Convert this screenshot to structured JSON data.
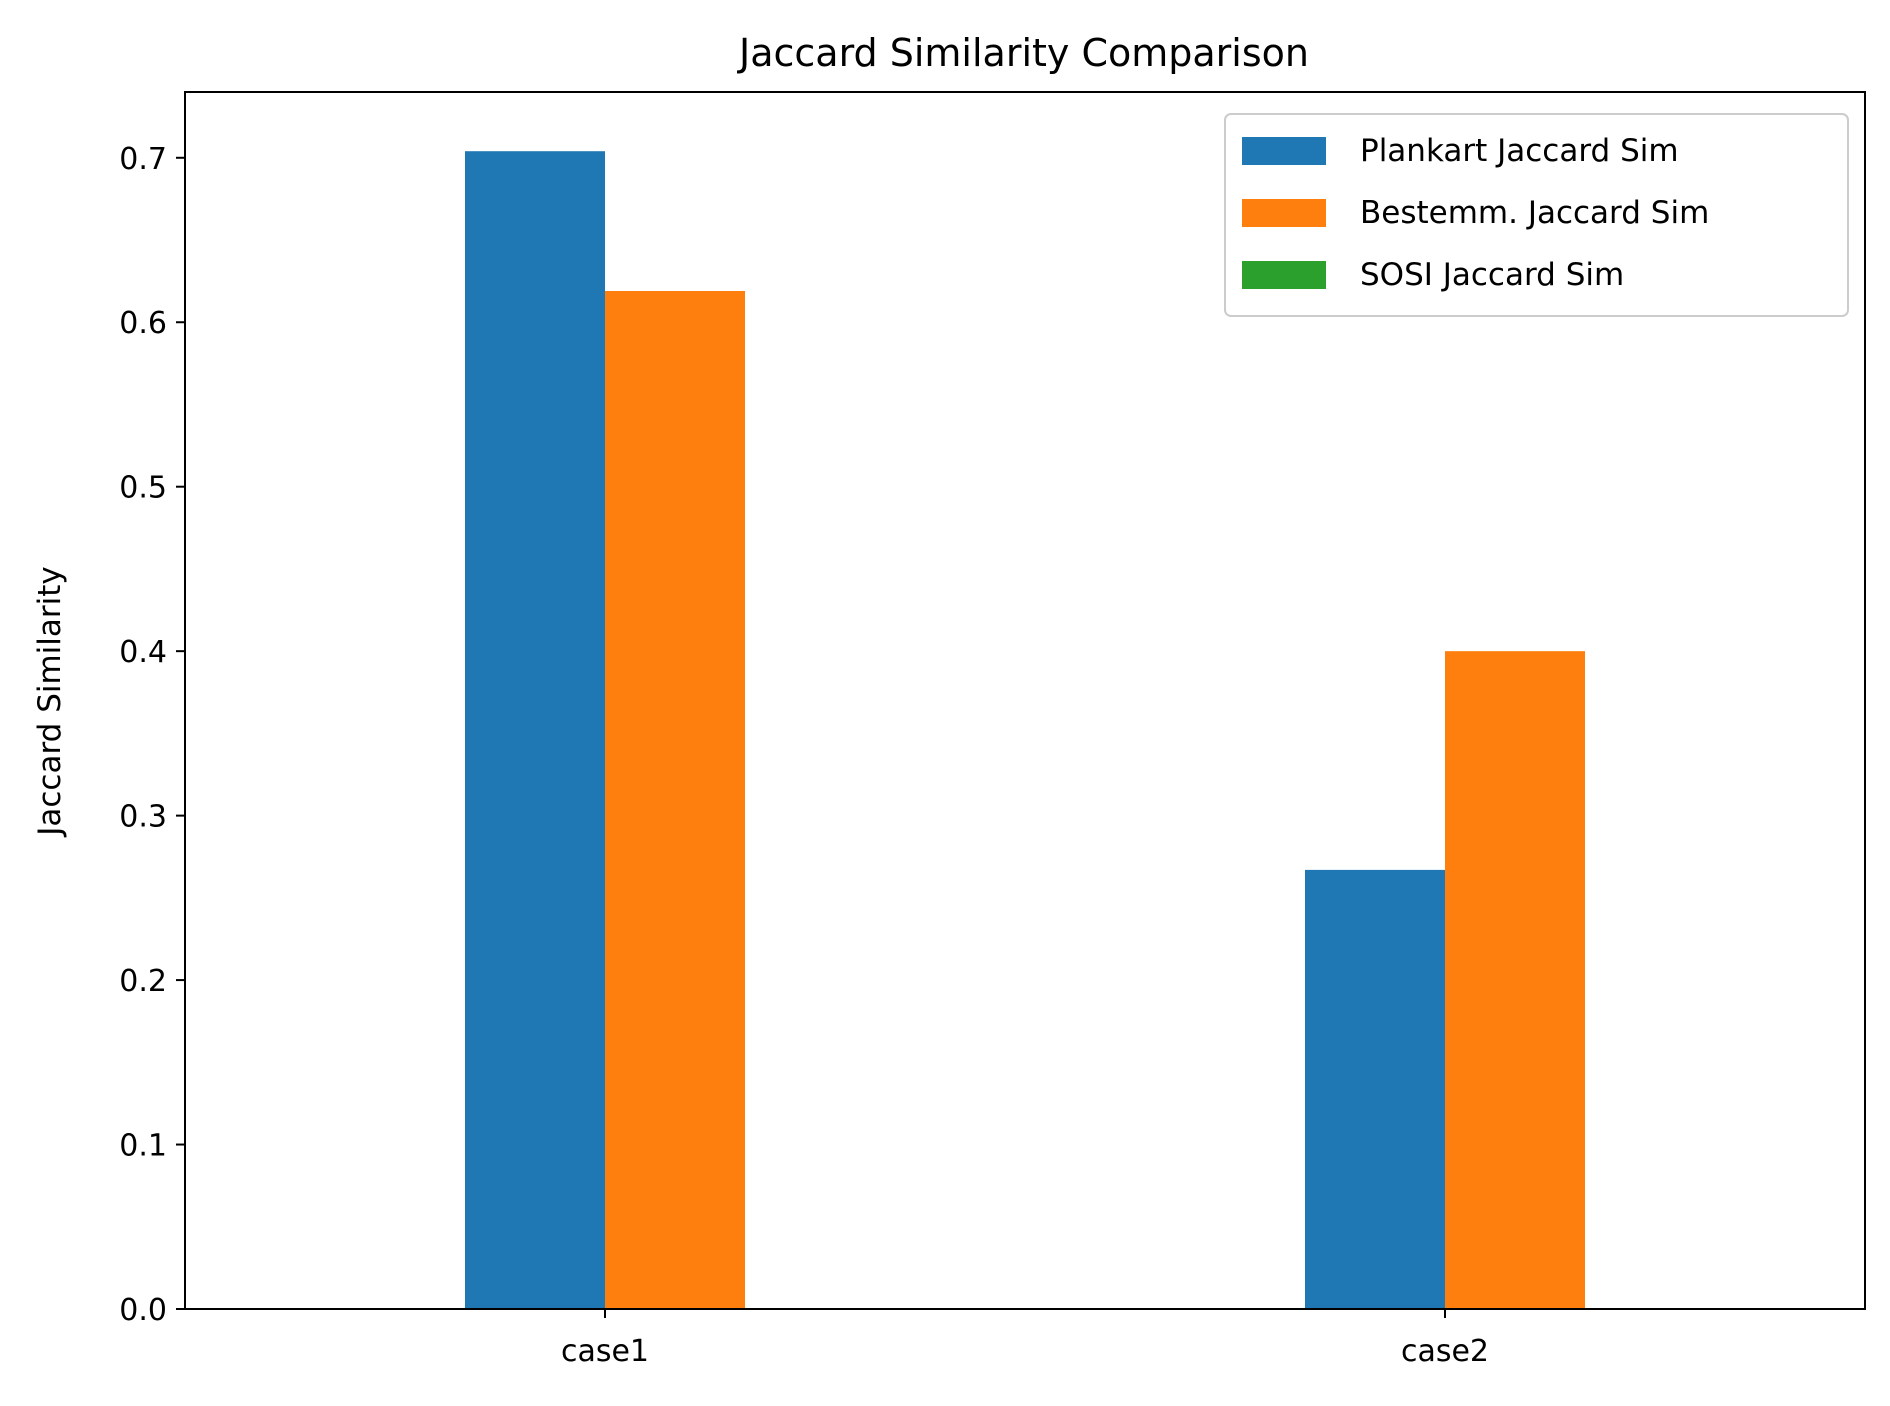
{
  "chart_data": {
    "type": "bar",
    "title": "Jaccard Similarity Comparison",
    "xlabel": "",
    "ylabel": "Jaccard Similarity",
    "categories": [
      "case1",
      "case2"
    ],
    "ylim": [
      0,
      0.74
    ],
    "yticks": [
      0.0,
      0.1,
      0.2,
      0.3,
      0.4,
      0.5,
      0.6,
      0.7
    ],
    "ytick_labels": [
      "0.0",
      "0.1",
      "0.2",
      "0.3",
      "0.4",
      "0.5",
      "0.6",
      "0.7"
    ],
    "grid": false,
    "legend_position": "top-right",
    "series": [
      {
        "name": "Plankart Jaccard Sim",
        "color": "#1f77b4",
        "values": [
          0.704,
          0.267
        ]
      },
      {
        "name": "Bestemm. Jaccard Sim",
        "color": "#ff7f0e",
        "values": [
          0.619,
          0.4
        ]
      },
      {
        "name": "SOSI Jaccard Sim",
        "color": "#2ca02c",
        "values": [
          0.0,
          0.0
        ]
      }
    ]
  }
}
